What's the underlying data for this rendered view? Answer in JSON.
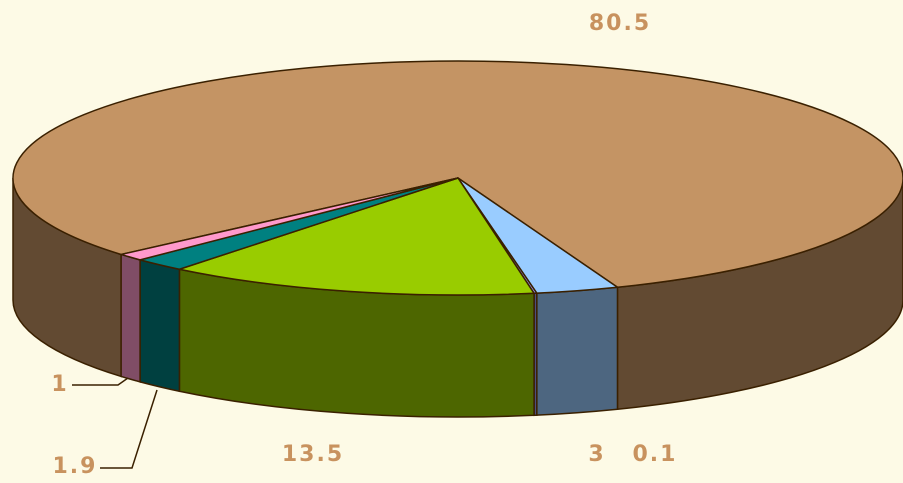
{
  "chart_data": {
    "type": "pie3d",
    "values": [
      80.5,
      3,
      0.1,
      13.5,
      1.9,
      1
    ],
    "colors": [
      "#c49464",
      "#99ccff",
      "#9999ff",
      "#99cc00",
      "#008080",
      "#ff99cc"
    ]
  }
}
